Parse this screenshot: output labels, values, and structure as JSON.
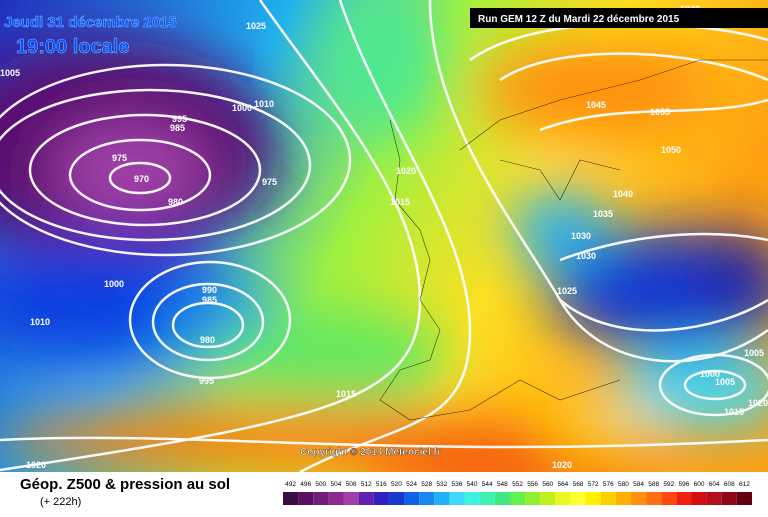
{
  "header": {
    "date": "Jeudi 31 décembre 2015",
    "time": "19:00 locale",
    "run": "Run GEM 12 Z du Mardi 22 décembre 2015"
  },
  "copyright": "Copyright © 2014 Meteociel.fr",
  "footer": {
    "title": "Géop. Z500 & pression au sol",
    "lead": "(+ 222h)"
  },
  "colorbar": {
    "values": [
      492,
      496,
      500,
      504,
      508,
      512,
      516,
      520,
      524,
      528,
      532,
      536,
      540,
      544,
      548,
      552,
      556,
      560,
      564,
      568,
      572,
      576,
      580,
      584,
      588,
      592,
      596,
      600,
      604,
      608,
      612
    ],
    "colors": [
      "#3a0d45",
      "#5a1060",
      "#701e78",
      "#8a2a8f",
      "#a040a8",
      "#6020b0",
      "#3020c0",
      "#1838d0",
      "#1060e8",
      "#1888f0",
      "#20b0f8",
      "#40d8f8",
      "#40f0e0",
      "#40f0b0",
      "#40e880",
      "#60f050",
      "#90f030",
      "#c0f020",
      "#e8f820",
      "#ffff30",
      "#fff000",
      "#ffd000",
      "#ffb000",
      "#ff9010",
      "#ff7010",
      "#ff4810",
      "#f02010",
      "#d01010",
      "#b01020",
      "#900818",
      "#600010"
    ]
  },
  "isobar_labels": [
    "1005",
    "995",
    "985",
    "1000",
    "1010",
    "975",
    "970",
    "975",
    "980",
    "1020",
    "1015",
    "1000",
    "990",
    "985",
    "980",
    "1010",
    "995",
    "1015",
    "1020",
    "1020",
    "1025",
    "1040",
    "1045",
    "1055",
    "1050",
    "1040",
    "1035",
    "1030",
    "1030",
    "1025",
    "1000",
    "1005",
    "1015",
    "1020",
    "1005"
  ]
}
